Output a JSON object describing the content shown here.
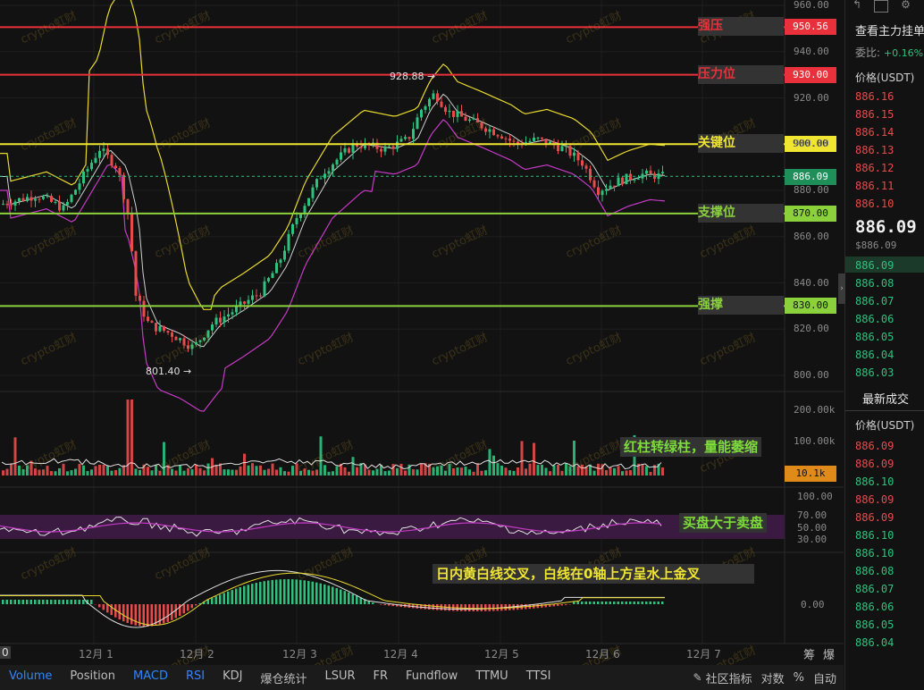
{
  "colors": {
    "up": "#2ec27e",
    "down": "#e84b4b",
    "resistance": "#e8313a",
    "key": "#f0e631",
    "support": "#8ad13c",
    "purple": "#c53ac5",
    "white": "#d9d9d9",
    "yellow": "#e8d92e"
  },
  "levels": [
    {
      "label": "强压",
      "value": "950.56",
      "color": "#e8313a",
      "badge_bg": "#e8313a",
      "badge_fg": "#ffffff",
      "price": 950.56
    },
    {
      "label": "压力位",
      "value": "930.00",
      "color": "#e8313a",
      "badge_bg": "#e8313a",
      "badge_fg": "#ffffff",
      "price": 930
    },
    {
      "label": "关键位",
      "value": "900.00",
      "color": "#f0e631",
      "badge_bg": "#f0e631",
      "badge_fg": "#111111",
      "price": 900
    },
    {
      "label": "支撑位",
      "value": "870.00",
      "color": "#8ad13c",
      "badge_bg": "#8ad13c",
      "badge_fg": "#111111",
      "price": 870
    },
    {
      "label": "强撑",
      "value": "830.00",
      "color": "#8ad13c",
      "badge_bg": "#8ad13c",
      "badge_fg": "#111111",
      "price": 830
    }
  ],
  "current_price": {
    "value": "886.09",
    "price": 886.09
  },
  "price_axis": [
    "960.00",
    "940.00",
    "920.00",
    "900.00",
    "880.00",
    "860.00",
    "840.00",
    "820.00",
    "800.00"
  ],
  "volume_axis": [
    "200.00k",
    "100.00k"
  ],
  "volume_badge": "10.1k",
  "rsi_axis": [
    "100.00",
    "70.00",
    "50.00",
    "30.00"
  ],
  "macd_axis": [
    "0.00"
  ],
  "x_axis": [
    "0",
    "12月 1",
    "12月 2",
    "12月 3",
    "12月 4",
    "12月 5",
    "12月 6",
    "12月 7"
  ],
  "markers": {
    "high": "928.88 →",
    "low": "801.40 →"
  },
  "annotations": {
    "volume": "红柱转绿柱，量能萎缩",
    "rsi": "买盘大于卖盘",
    "macd": "日内黄白线交叉，白线在0轴上方呈水上金叉"
  },
  "watermark": "crypto虹财",
  "bottom_tabs": [
    {
      "label": "Volume",
      "active": true
    },
    {
      "label": "Position",
      "active": false
    },
    {
      "label": "MACD",
      "active": true
    },
    {
      "label": "RSI",
      "active": true
    },
    {
      "label": "KDJ",
      "active": false
    },
    {
      "label": "爆仓统计",
      "active": false
    },
    {
      "label": "LSUR",
      "active": false
    },
    {
      "label": "FR",
      "active": false
    },
    {
      "label": "Fundflow",
      "active": false
    },
    {
      "label": "TTMU",
      "active": false
    },
    {
      "label": "TTSI",
      "active": false
    }
  ],
  "bottom_right": {
    "community": "社区指标",
    "contrast": "对数",
    "percent": "%",
    "auto": "自动"
  },
  "corner_labels": {
    "chips": "筹",
    "burst": "爆"
  },
  "side_panel": {
    "title": "查看主力挂单",
    "ratio_label": "委比:",
    "ratio_value": "+0.16%",
    "price_header": "价格(USDT)",
    "asks": [
      "886.16",
      "886.15",
      "886.14",
      "886.13",
      "886.12",
      "886.11",
      "886.10"
    ],
    "mid_price": "886.09",
    "mid_sub": "$886.09",
    "bids": [
      "886.09",
      "886.08",
      "886.07",
      "886.06",
      "886.05",
      "886.04",
      "886.03"
    ],
    "trades_title": "最新成交",
    "trades_header": "价格(USDT)",
    "trades": [
      {
        "p": "886.09",
        "side": "down"
      },
      {
        "p": "886.09",
        "side": "down"
      },
      {
        "p": "886.10",
        "side": "up"
      },
      {
        "p": "886.09",
        "side": "down"
      },
      {
        "p": "886.09",
        "side": "down"
      },
      {
        "p": "886.10",
        "side": "up"
      },
      {
        "p": "886.10",
        "side": "up"
      },
      {
        "p": "886.08",
        "side": "up"
      },
      {
        "p": "886.07",
        "side": "up"
      },
      {
        "p": "886.06",
        "side": "up"
      },
      {
        "p": "886.05",
        "side": "up"
      },
      {
        "p": "886.04",
        "side": "up"
      }
    ]
  }
}
